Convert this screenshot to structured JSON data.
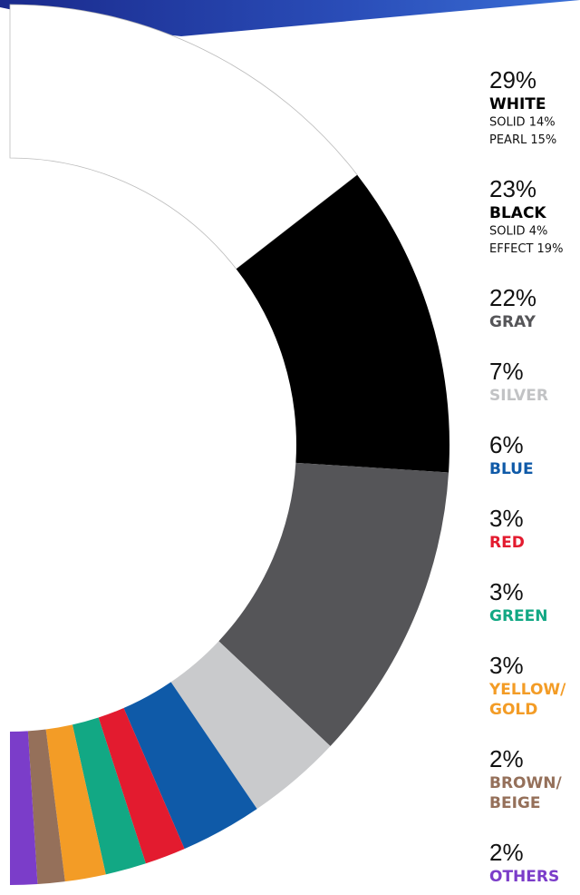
{
  "chart_data": {
    "type": "half-donut",
    "items": [
      {
        "name": [
          "WHITE"
        ],
        "value": 29,
        "value_label": "29%",
        "details": [
          "SOLID 14%",
          "PEARL 15%"
        ],
        "color": "#ffffff",
        "text_color": "#000000"
      },
      {
        "name": [
          "BLACK"
        ],
        "value": 23,
        "value_label": "23%",
        "details": [
          "SOLID 4%",
          "EFFECT 19%"
        ],
        "color": "#000000",
        "text_color": "#000000"
      },
      {
        "name": [
          "GRAY"
        ],
        "value": 22,
        "value_label": "22%",
        "color": "#555558",
        "text_color": "#555558"
      },
      {
        "name": [
          "SILVER"
        ],
        "value": 7,
        "value_label": "7%",
        "color": "#c9cacc",
        "text_color": "#c2c3c5"
      },
      {
        "name": [
          "BLUE"
        ],
        "value": 6,
        "value_label": "6%",
        "color": "#0f5aa8",
        "text_color": "#0f5aa8"
      },
      {
        "name": [
          "RED"
        ],
        "value": 3,
        "value_label": "3%",
        "color": "#e31b2f",
        "text_color": "#e31b2f"
      },
      {
        "name": [
          "GREEN"
        ],
        "value": 3,
        "value_label": "3%",
        "color": "#12a884",
        "text_color": "#12a884"
      },
      {
        "name": [
          "YELLOW/",
          "GOLD"
        ],
        "value": 3,
        "value_label": "3%",
        "color": "#f39c26",
        "text_color": "#f39c26"
      },
      {
        "name": [
          "BROWN/",
          "BEIGE"
        ],
        "value": 2,
        "value_label": "2%",
        "color": "#95705a",
        "text_color": "#95705a"
      },
      {
        "name": [
          "OTHERS"
        ],
        "value": 2,
        "value_label": "2%",
        "color": "#7b3dc9",
        "text_color": "#7b3dc9"
      }
    ]
  }
}
